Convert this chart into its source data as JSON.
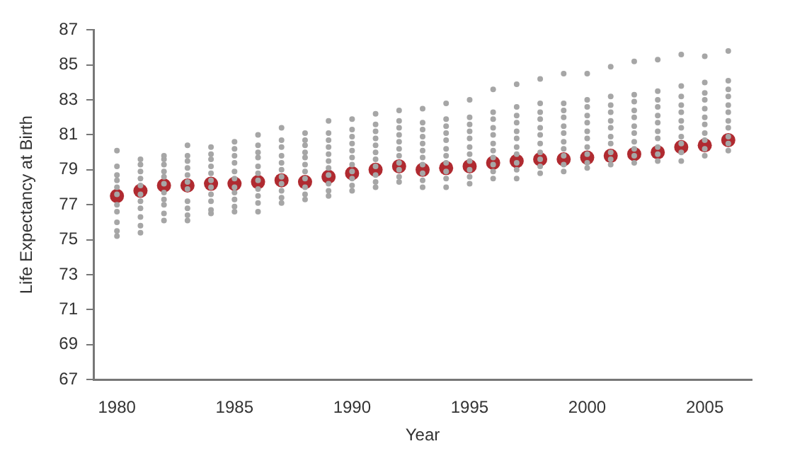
{
  "chart_data": {
    "type": "scatter",
    "xlabel": "Year",
    "ylabel": "Life Expectancy at Birth",
    "xlim": [
      1979,
      2007
    ],
    "xticks": [
      1980,
      1985,
      1990,
      1995,
      2000,
      2005
    ],
    "ylim": [
      67,
      87
    ],
    "yticks": [
      67,
      69,
      71,
      73,
      75,
      77,
      79,
      81,
      83,
      85,
      87
    ],
    "grid": false,
    "legend": false,
    "marker": "circle",
    "series": [
      {
        "color": "#a6a6a6",
        "x": [
          1980,
          1980,
          1980,
          1980,
          1980,
          1980,
          1980,
          1980,
          1980,
          1980,
          1980,
          1981,
          1981,
          1981,
          1981,
          1981,
          1981,
          1981,
          1981,
          1981,
          1981,
          1981,
          1982,
          1982,
          1982,
          1982,
          1982,
          1982,
          1982,
          1982,
          1982,
          1982,
          1982,
          1983,
          1983,
          1983,
          1983,
          1983,
          1983,
          1983,
          1983,
          1983,
          1983,
          1983,
          1984,
          1984,
          1984,
          1984,
          1984,
          1984,
          1984,
          1984,
          1984,
          1984,
          1984,
          1985,
          1985,
          1985,
          1985,
          1985,
          1985,
          1985,
          1985,
          1985,
          1985,
          1985,
          1986,
          1986,
          1986,
          1986,
          1986,
          1986,
          1986,
          1986,
          1986,
          1986,
          1986,
          1987,
          1987,
          1987,
          1987,
          1987,
          1987,
          1987,
          1987,
          1987,
          1987,
          1987,
          1988,
          1988,
          1988,
          1988,
          1988,
          1988,
          1988,
          1988,
          1988,
          1988,
          1988,
          1989,
          1989,
          1989,
          1989,
          1989,
          1989,
          1989,
          1989,
          1989,
          1989,
          1989,
          1990,
          1990,
          1990,
          1990,
          1990,
          1990,
          1990,
          1990,
          1990,
          1990,
          1990,
          1991,
          1991,
          1991,
          1991,
          1991,
          1991,
          1991,
          1991,
          1991,
          1991,
          1991,
          1992,
          1992,
          1992,
          1992,
          1992,
          1992,
          1992,
          1992,
          1992,
          1992,
          1992,
          1993,
          1993,
          1993,
          1993,
          1993,
          1993,
          1993,
          1993,
          1993,
          1993,
          1993,
          1994,
          1994,
          1994,
          1994,
          1994,
          1994,
          1994,
          1994,
          1994,
          1994,
          1994,
          1995,
          1995,
          1995,
          1995,
          1995,
          1995,
          1995,
          1995,
          1995,
          1995,
          1995,
          1996,
          1996,
          1996,
          1996,
          1996,
          1996,
          1996,
          1996,
          1996,
          1996,
          1996,
          1997,
          1997,
          1997,
          1997,
          1997,
          1997,
          1997,
          1997,
          1997,
          1997,
          1997,
          1998,
          1998,
          1998,
          1998,
          1998,
          1998,
          1998,
          1998,
          1998,
          1998,
          1998,
          1999,
          1999,
          1999,
          1999,
          1999,
          1999,
          1999,
          1999,
          1999,
          1999,
          1999,
          2000,
          2000,
          2000,
          2000,
          2000,
          2000,
          2000,
          2000,
          2000,
          2000,
          2000,
          2001,
          2001,
          2001,
          2001,
          2001,
          2001,
          2001,
          2001,
          2001,
          2001,
          2001,
          2002,
          2002,
          2002,
          2002,
          2002,
          2002,
          2002,
          2002,
          2002,
          2002,
          2002,
          2003,
          2003,
          2003,
          2003,
          2003,
          2003,
          2003,
          2003,
          2003,
          2003,
          2003,
          2004,
          2004,
          2004,
          2004,
          2004,
          2004,
          2004,
          2004,
          2004,
          2004,
          2004,
          2005,
          2005,
          2005,
          2005,
          2005,
          2005,
          2005,
          2005,
          2005,
          2005,
          2005,
          2006,
          2006,
          2006,
          2006,
          2006,
          2006,
          2006,
          2006,
          2006,
          2006,
          2006
        ],
        "values": [
          75.2,
          75.5,
          76.0,
          76.6,
          77.0,
          77.6,
          78.0,
          78.4,
          78.7,
          79.2,
          80.1,
          75.4,
          75.8,
          76.3,
          76.8,
          77.2,
          77.6,
          78.1,
          78.5,
          78.9,
          79.3,
          79.6,
          76.1,
          76.5,
          77.0,
          77.3,
          77.7,
          78.2,
          78.6,
          78.9,
          79.3,
          79.6,
          79.8,
          76.1,
          76.4,
          76.8,
          77.2,
          77.9,
          78.3,
          78.7,
          79.1,
          79.5,
          79.8,
          80.4,
          76.5,
          76.7,
          77.2,
          77.6,
          78.0,
          78.4,
          78.8,
          79.2,
          79.6,
          79.9,
          80.3,
          76.6,
          76.9,
          77.3,
          77.7,
          78.0,
          78.5,
          78.9,
          79.4,
          79.8,
          80.2,
          80.6,
          76.6,
          77.1,
          77.5,
          77.9,
          78.4,
          78.8,
          79.2,
          79.7,
          80.0,
          80.4,
          81.0,
          77.1,
          77.4,
          77.8,
          78.2,
          78.6,
          79.0,
          79.4,
          79.8,
          80.3,
          80.7,
          81.4,
          77.3,
          77.6,
          78.0,
          78.5,
          78.9,
          79.3,
          79.7,
          80.0,
          80.4,
          80.7,
          81.1,
          77.5,
          77.8,
          78.2,
          78.7,
          79.1,
          79.5,
          79.9,
          80.3,
          80.7,
          81.1,
          81.8,
          77.8,
          78.1,
          78.5,
          78.9,
          79.3,
          79.7,
          80.1,
          80.5,
          80.9,
          81.3,
          81.9,
          78.0,
          78.3,
          78.7,
          79.2,
          79.6,
          80.0,
          80.4,
          80.8,
          81.2,
          81.6,
          82.2,
          78.3,
          78.6,
          79.0,
          79.4,
          79.8,
          80.2,
          80.6,
          81.0,
          81.4,
          81.8,
          82.4,
          78.0,
          78.4,
          78.8,
          79.3,
          79.7,
          80.1,
          80.5,
          80.9,
          81.3,
          81.7,
          82.5,
          78.0,
          78.5,
          78.9,
          79.4,
          79.8,
          80.2,
          80.7,
          81.1,
          81.5,
          81.9,
          82.8,
          78.2,
          78.6,
          79.0,
          79.5,
          79.9,
          80.3,
          80.8,
          81.2,
          81.6,
          82.0,
          83.0,
          78.5,
          78.9,
          79.3,
          79.7,
          80.1,
          80.5,
          81.0,
          81.4,
          81.9,
          82.3,
          83.6,
          78.5,
          79.0,
          79.4,
          79.9,
          80.3,
          80.8,
          81.2,
          81.7,
          82.1,
          82.6,
          83.9,
          78.8,
          79.2,
          79.6,
          80.0,
          80.5,
          81.0,
          81.4,
          81.9,
          82.3,
          82.8,
          84.2,
          78.9,
          79.3,
          79.8,
          80.2,
          80.6,
          81.1,
          81.5,
          82.0,
          82.4,
          82.8,
          84.5,
          79.1,
          79.4,
          79.9,
          80.3,
          80.8,
          81.2,
          81.7,
          82.1,
          82.6,
          83.0,
          84.5,
          79.3,
          79.6,
          80.0,
          80.5,
          80.9,
          81.4,
          81.8,
          82.3,
          82.7,
          83.2,
          84.9,
          79.4,
          79.8,
          80.2,
          80.6,
          81.1,
          81.5,
          82.0,
          82.4,
          82.9,
          83.3,
          85.2,
          79.5,
          79.9,
          80.3,
          80.8,
          81.2,
          81.7,
          82.1,
          82.6,
          83.0,
          83.5,
          85.3,
          79.5,
          80.0,
          80.5,
          80.9,
          81.4,
          81.8,
          82.3,
          82.7,
          83.2,
          83.8,
          85.6,
          79.8,
          80.2,
          80.7,
          81.1,
          81.6,
          82.0,
          82.5,
          83.0,
          83.4,
          84.0,
          85.5,
          80.1,
          80.5,
          80.9,
          81.4,
          81.8,
          82.3,
          82.7,
          83.2,
          83.6,
          84.1,
          85.8
        ]
      },
      {
        "color": "#b02a30",
        "x": [
          1980,
          1981,
          1982,
          1983,
          1984,
          1985,
          1986,
          1987,
          1988,
          1989,
          1990,
          1991,
          1992,
          1993,
          1994,
          1995,
          1996,
          1997,
          1998,
          1999,
          2000,
          2001,
          2002,
          2003,
          2004,
          2005,
          2006
        ],
        "values": [
          77.5,
          77.8,
          78.1,
          78.1,
          78.2,
          78.2,
          78.3,
          78.4,
          78.3,
          78.6,
          78.8,
          79.0,
          79.2,
          79.0,
          79.1,
          79.2,
          79.4,
          79.5,
          79.6,
          79.6,
          79.7,
          79.8,
          79.9,
          80.0,
          80.3,
          80.4,
          80.7
        ]
      }
    ]
  }
}
